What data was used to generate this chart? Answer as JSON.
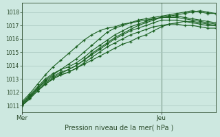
{
  "title": "Pression niveau de la mer( hPa )",
  "bg_color": "#cde8e0",
  "grid_color": "#a8c8c0",
  "line_color": "#1a6020",
  "axis_color": "#2a4a2a",
  "ylabel_values": [
    1011,
    1012,
    1013,
    1014,
    1015,
    1016,
    1017,
    1018
  ],
  "ylim": [
    1010.5,
    1018.7
  ],
  "xlim": [
    0,
    50
  ],
  "vline_x": 36,
  "x_ticks": [
    0,
    36
  ],
  "x_labels": [
    "Mer",
    "Jeu"
  ],
  "series": [
    [
      0,
      1011.0,
      2,
      1011.5,
      4,
      1012.1,
      6,
      1012.6,
      8,
      1013.0,
      10,
      1013.3,
      12,
      1013.5,
      14,
      1013.8,
      16,
      1014.1,
      18,
      1014.4,
      20,
      1014.7,
      22,
      1015.0,
      24,
      1015.3,
      26,
      1015.6,
      28,
      1015.8,
      30,
      1016.1,
      32,
      1016.3,
      34,
      1016.6,
      36,
      1016.9,
      38,
      1017.1,
      40,
      1017.2,
      42,
      1017.3,
      44,
      1017.3,
      46,
      1017.2,
      48,
      1017.1,
      50,
      1017.0
    ],
    [
      0,
      1011.0,
      2,
      1011.6,
      4,
      1012.3,
      6,
      1012.9,
      8,
      1013.3,
      10,
      1013.7,
      12,
      1014.1,
      14,
      1014.5,
      16,
      1015.0,
      18,
      1015.5,
      20,
      1016.0,
      22,
      1016.5,
      24,
      1016.8,
      26,
      1017.0,
      28,
      1017.2,
      30,
      1017.4,
      32,
      1017.5,
      34,
      1017.6,
      36,
      1017.7,
      38,
      1017.8,
      40,
      1017.9,
      42,
      1018.0,
      44,
      1018.1,
      46,
      1018.0,
      48,
      1017.9,
      50,
      1017.9
    ],
    [
      0,
      1011.1,
      2,
      1011.7,
      4,
      1012.2,
      6,
      1012.7,
      8,
      1013.1,
      10,
      1013.4,
      12,
      1013.7,
      14,
      1014.0,
      16,
      1014.4,
      18,
      1014.9,
      20,
      1015.3,
      22,
      1015.7,
      24,
      1016.1,
      26,
      1016.4,
      28,
      1016.7,
      30,
      1017.0,
      32,
      1017.2,
      34,
      1017.4,
      36,
      1017.6,
      38,
      1017.7,
      40,
      1017.8,
      42,
      1017.9,
      44,
      1018.0,
      46,
      1018.1,
      48,
      1018.0,
      50,
      1017.9
    ],
    [
      0,
      1011.2,
      2,
      1011.8,
      4,
      1012.4,
      6,
      1013.0,
      8,
      1013.4,
      10,
      1013.7,
      12,
      1013.9,
      14,
      1014.2,
      16,
      1014.6,
      18,
      1015.1,
      20,
      1015.5,
      22,
      1015.9,
      24,
      1016.3,
      26,
      1016.6,
      28,
      1016.9,
      30,
      1017.1,
      32,
      1017.3,
      34,
      1017.5,
      36,
      1017.6,
      38,
      1017.7,
      40,
      1017.7,
      42,
      1017.6,
      44,
      1017.5,
      46,
      1017.4,
      48,
      1017.3,
      50,
      1017.2
    ],
    [
      0,
      1011.1,
      2,
      1011.7,
      4,
      1012.3,
      6,
      1012.8,
      8,
      1013.2,
      10,
      1013.5,
      12,
      1013.7,
      14,
      1014.0,
      16,
      1014.4,
      18,
      1014.8,
      20,
      1015.2,
      22,
      1015.6,
      24,
      1016.0,
      26,
      1016.3,
      28,
      1016.6,
      30,
      1016.8,
      32,
      1017.0,
      34,
      1017.2,
      36,
      1017.4,
      38,
      1017.4,
      40,
      1017.4,
      42,
      1017.3,
      44,
      1017.2,
      46,
      1017.1,
      48,
      1017.0,
      50,
      1017.0
    ],
    [
      0,
      1011.0,
      2,
      1011.6,
      4,
      1012.1,
      6,
      1012.6,
      8,
      1013.0,
      10,
      1013.3,
      12,
      1013.5,
      14,
      1013.8,
      16,
      1014.2,
      18,
      1014.6,
      20,
      1015.0,
      22,
      1015.4,
      24,
      1015.7,
      26,
      1016.0,
      28,
      1016.3,
      30,
      1016.5,
      32,
      1016.7,
      34,
      1016.9,
      36,
      1017.0,
      38,
      1017.1,
      40,
      1017.1,
      42,
      1017.0,
      44,
      1017.0,
      46,
      1016.9,
      48,
      1016.8,
      50,
      1016.8
    ],
    [
      0,
      1011.3,
      2,
      1011.9,
      4,
      1012.6,
      6,
      1013.3,
      8,
      1013.9,
      10,
      1014.4,
      12,
      1014.9,
      14,
      1015.4,
      16,
      1015.9,
      18,
      1016.3,
      20,
      1016.6,
      22,
      1016.8,
      24,
      1016.9,
      26,
      1017.1,
      28,
      1017.2,
      30,
      1017.3,
      32,
      1017.4,
      34,
      1017.5,
      36,
      1017.6,
      38,
      1017.6,
      40,
      1017.6,
      42,
      1017.5,
      44,
      1017.4,
      46,
      1017.3,
      48,
      1017.2,
      50,
      1017.1
    ]
  ]
}
